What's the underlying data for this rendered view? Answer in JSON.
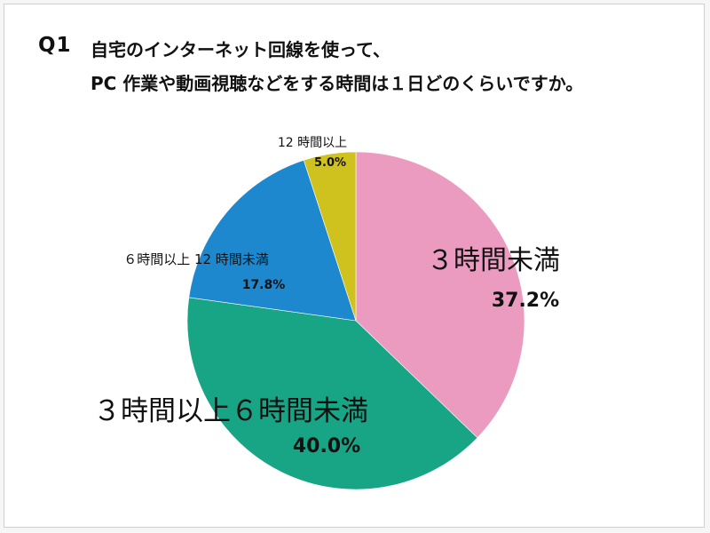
{
  "question": {
    "number": "Q1",
    "line1": "自宅のインターネット回線を使って、",
    "line2": "PC 作業や動画視聴などをする時間は１日どのくらいですか。"
  },
  "chart_data": {
    "type": "pie",
    "title": "Q1 自宅のインターネット回線を使って、PC 作業や動画視聴などをする時間は１日どのくらいですか。",
    "start_angle_deg": 0,
    "direction": "clockwise",
    "slices": [
      {
        "label": "３時間未満",
        "value": 37.2,
        "value_label": "37.2%",
        "color": "#eb9bbf"
      },
      {
        "label": "３時間以上６時間未満",
        "value": 40.0,
        "value_label": "40.0%",
        "color": "#17a585"
      },
      {
        "label": "６時間以上 12 時間未満",
        "value": 17.8,
        "value_label": "17.8%",
        "color": "#1e88cf"
      },
      {
        "label": "12 時間以上",
        "value": 5.0,
        "value_label": "5.0%",
        "color": "#cfc21e"
      }
    ]
  }
}
